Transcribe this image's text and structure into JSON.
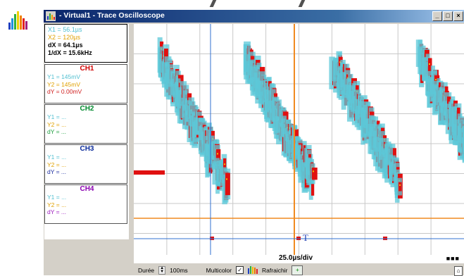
{
  "window": {
    "title": "- Virtual1 - Trace Oscilloscope",
    "minimize": "_",
    "maximize": "□",
    "close": "×"
  },
  "cursors": {
    "x1": "X1 = 56.1µs",
    "x2": "X2 = 120µs",
    "dx": "dX = 64.1µs",
    "inv_dx": "1/dX = 15.6kHz"
  },
  "channels": [
    {
      "title": "CH1",
      "y1": "Y1 = 145mV",
      "y2": "Y2 = 145mV",
      "dy": "dY = 0.00mV"
    },
    {
      "title": "CH2",
      "y1": "Y1 = ...",
      "y2": "Y2 = ...",
      "dy": "dY = ..."
    },
    {
      "title": "CH3",
      "y1": "Y1 = ...",
      "y2": "Y2 = ...",
      "dy": "dY = ..."
    },
    {
      "title": "CH4",
      "y1": "Y1 = ...",
      "y2": "Y2 = ...",
      "dy": "dY = ..."
    }
  ],
  "scope": {
    "timebase": "25.0µs/div",
    "trigger_marker": "T",
    "run_indicator": "■■■"
  },
  "bottom": {
    "duration_label": "Durée",
    "duration_value": "100ms",
    "multicolor_label": "Multicolor",
    "multicolor_checked": "✓",
    "refresh_label": "Rafraichir",
    "refresh_icon": "+"
  },
  "colors": {
    "trace_red": "#e01010",
    "trace_yellow": "#f0c000",
    "trace_cyan": "#5cc8d8",
    "cursor_orange": "#f08a20",
    "trigger_blue": "#3070d0",
    "grid": "#c8c8c8"
  },
  "icons": {
    "app": "spectrum-bars-icon",
    "corner": "pin-icon"
  }
}
